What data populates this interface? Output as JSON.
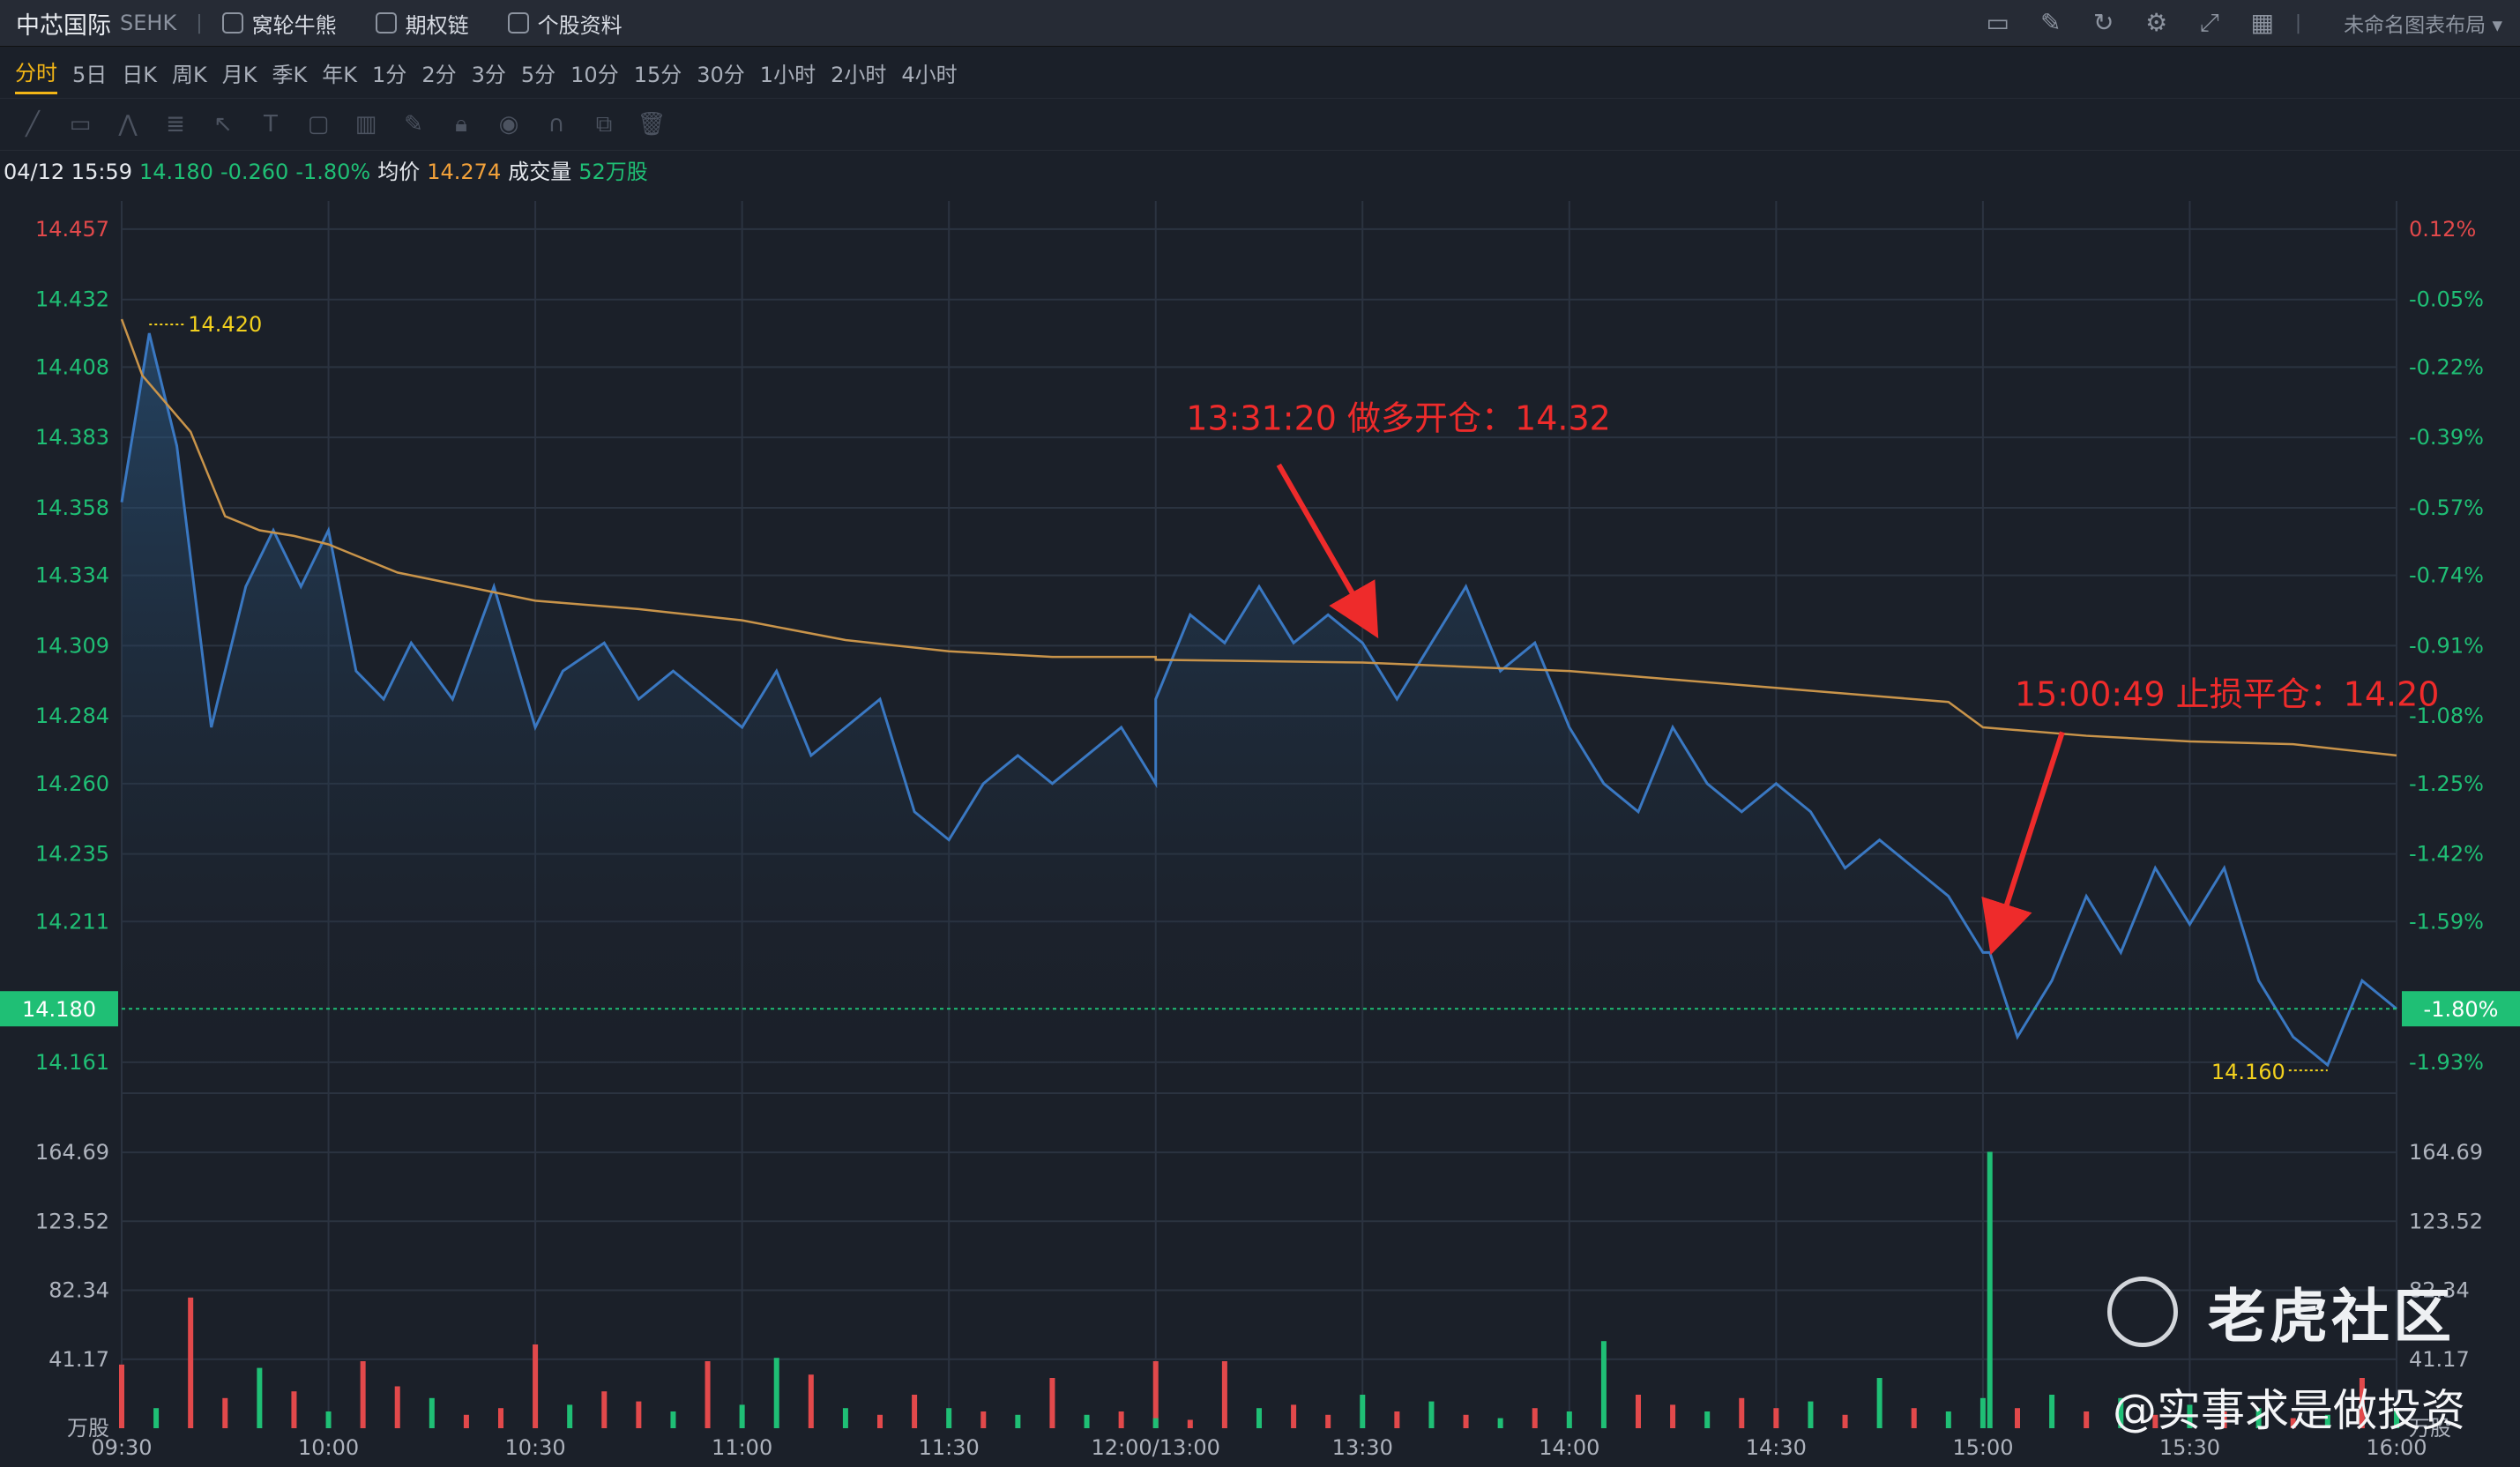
{
  "header": {
    "stock_name": "中芯国际",
    "exchange": "SEHK",
    "menu": [
      {
        "label": "窝轮牛熊",
        "icon": "warrant-icon"
      },
      {
        "label": "期权链",
        "icon": "option-chain-icon"
      },
      {
        "label": "个股资料",
        "icon": "document-icon"
      }
    ],
    "tools_right": [
      "monitor-icon",
      "edit-icon",
      "refresh-icon",
      "settings-icon",
      "fullscreen-icon",
      "grid-layout-icon"
    ],
    "layout_label": "未命名图表布局"
  },
  "periods": [
    "分时",
    "5日",
    "日K",
    "周K",
    "月K",
    "季K",
    "年K",
    "1分",
    "2分",
    "3分",
    "5分",
    "10分",
    "15分",
    "30分",
    "1小时",
    "2小时",
    "4小时"
  ],
  "active_period": "分时",
  "drawing_tools": [
    "line-tool-icon",
    "rect-tool-icon",
    "pattern-tool-icon",
    "fib-tool-icon",
    "arrow-tool-icon",
    "text-tool-icon",
    "label-tool-icon",
    "measure-tool-icon",
    "pen-icon",
    "lock-icon",
    "eye-icon",
    "magnet-icon",
    "copy-icon",
    "trash-icon"
  ],
  "info": {
    "datetime": "04/12 15:59",
    "price": "14.180",
    "change": "-0.260",
    "change_pct": "-1.80%",
    "avg_label": "均价",
    "avg_value": "14.274",
    "vol_label": "成交量",
    "vol_value": "52万股"
  },
  "colors": {
    "up": "#e2494b",
    "down": "#1fbf75",
    "price_line": "#3a78c2",
    "avg_line": "#c9944a",
    "highlight": "#f2d01e",
    "annotation": "#ee2b2b"
  },
  "y_price_labels": [
    {
      "v": 14.457,
      "t": "14.457"
    },
    {
      "v": 14.432,
      "t": "14.432"
    },
    {
      "v": 14.408,
      "t": "14.408"
    },
    {
      "v": 14.383,
      "t": "14.383"
    },
    {
      "v": 14.358,
      "t": "14.358"
    },
    {
      "v": 14.334,
      "t": "14.334"
    },
    {
      "v": 14.309,
      "t": "14.309"
    },
    {
      "v": 14.284,
      "t": "14.284"
    },
    {
      "v": 14.26,
      "t": "14.260"
    },
    {
      "v": 14.235,
      "t": "14.235"
    },
    {
      "v": 14.211,
      "t": "14.211"
    },
    {
      "v": 14.161,
      "t": "14.161"
    }
  ],
  "y_pct_labels": [
    {
      "v": 14.457,
      "t": "0.12%"
    },
    {
      "v": 14.432,
      "t": "-0.05%"
    },
    {
      "v": 14.408,
      "t": "-0.22%"
    },
    {
      "v": 14.383,
      "t": "-0.39%"
    },
    {
      "v": 14.358,
      "t": "-0.57%"
    },
    {
      "v": 14.334,
      "t": "-0.74%"
    },
    {
      "v": 14.309,
      "t": "-0.91%"
    },
    {
      "v": 14.284,
      "t": "-1.08%"
    },
    {
      "v": 14.26,
      "t": "-1.25%"
    },
    {
      "v": 14.235,
      "t": "-1.42%"
    },
    {
      "v": 14.211,
      "t": "-1.59%"
    },
    {
      "v": 14.161,
      "t": "-1.93%"
    }
  ],
  "last_price_tag": "14.180",
  "last_pct_tag": "-1.80%",
  "high_label": "14.420",
  "low_label": "14.160",
  "volume_labels": [
    "164.69",
    "123.52",
    "82.34",
    "41.17"
  ],
  "volume_unit": "万股",
  "x_labels": [
    "09:30",
    "10:00",
    "10:30",
    "11:00",
    "11:30",
    "12:00/13:00",
    "13:30",
    "14:00",
    "14:30",
    "15:00",
    "15:30",
    "16:00"
  ],
  "annotations": {
    "buy": "13:31:20 做多开仓：14.32",
    "stop": "15:00:49 止损平仓：14.20"
  },
  "watermark": {
    "community": "老虎社区",
    "user": "@实事求是做投资"
  },
  "chart_data": {
    "type": "line",
    "title": "",
    "prev_close": 14.44,
    "ylim": [
      14.15,
      14.467
    ],
    "volume_ylim": [
      0,
      200
    ],
    "sessions": [
      [
        "09:30",
        "12:00"
      ],
      [
        "13:00",
        "16:00"
      ]
    ],
    "series": [
      {
        "name": "price",
        "x": [
          "09:30",
          "09:34",
          "09:38",
          "09:43",
          "09:48",
          "09:52",
          "09:56",
          "10:00",
          "10:04",
          "10:08",
          "10:12",
          "10:18",
          "10:24",
          "10:30",
          "10:34",
          "10:40",
          "10:45",
          "10:50",
          "10:55",
          "11:00",
          "11:05",
          "11:10",
          "11:15",
          "11:20",
          "11:25",
          "11:30",
          "11:35",
          "11:40",
          "11:45",
          "11:50",
          "11:55",
          "12:00",
          "13:00",
          "13:05",
          "13:10",
          "13:15",
          "13:20",
          "13:25",
          "13:30",
          "13:35",
          "13:40",
          "13:45",
          "13:50",
          "13:55",
          "14:00",
          "14:05",
          "14:10",
          "14:15",
          "14:20",
          "14:25",
          "14:30",
          "14:35",
          "14:40",
          "14:45",
          "14:50",
          "14:55",
          "15:00",
          "15:01",
          "15:05",
          "15:10",
          "15:15",
          "15:20",
          "15:25",
          "15:30",
          "15:35",
          "15:40",
          "15:45",
          "15:50",
          "15:55",
          "16:00"
        ],
        "values": [
          14.36,
          14.42,
          14.38,
          14.28,
          14.33,
          14.35,
          14.33,
          14.35,
          14.3,
          14.29,
          14.31,
          14.29,
          14.33,
          14.28,
          14.3,
          14.31,
          14.29,
          14.3,
          14.29,
          14.28,
          14.3,
          14.27,
          14.28,
          14.29,
          14.25,
          14.24,
          14.26,
          14.27,
          14.26,
          14.27,
          14.28,
          14.26,
          14.29,
          14.32,
          14.31,
          14.33,
          14.31,
          14.32,
          14.31,
          14.29,
          14.31,
          14.33,
          14.3,
          14.31,
          14.28,
          14.26,
          14.25,
          14.28,
          14.26,
          14.25,
          14.26,
          14.25,
          14.23,
          14.24,
          14.23,
          14.22,
          14.2,
          14.2,
          14.17,
          14.19,
          14.22,
          14.2,
          14.23,
          14.21,
          14.23,
          14.19,
          14.17,
          14.16,
          14.19,
          14.18
        ]
      },
      {
        "name": "均价",
        "x": [
          "09:30",
          "09:33",
          "09:40",
          "09:45",
          "09:50",
          "09:55",
          "10:00",
          "10:10",
          "10:20",
          "10:30",
          "10:45",
          "11:00",
          "11:15",
          "11:30",
          "11:45",
          "12:00",
          "13:00",
          "13:30",
          "14:00",
          "14:15",
          "14:30",
          "14:45",
          "14:55",
          "15:00",
          "15:15",
          "15:30",
          "15:45",
          "16:00"
        ],
        "values": [
          14.425,
          14.405,
          14.385,
          14.355,
          14.35,
          14.348,
          14.345,
          14.335,
          14.33,
          14.325,
          14.322,
          14.318,
          14.311,
          14.307,
          14.305,
          14.305,
          14.304,
          14.303,
          14.3,
          14.297,
          14.294,
          14.291,
          14.289,
          14.28,
          14.277,
          14.275,
          14.274,
          14.27
        ]
      }
    ],
    "volume_minutes": [
      "09:30",
      "09:35",
      "09:40",
      "09:45",
      "09:50",
      "09:55",
      "10:00",
      "10:05",
      "10:10",
      "10:15",
      "10:20",
      "10:25",
      "10:30",
      "10:35",
      "10:40",
      "10:45",
      "10:50",
      "10:55",
      "11:00",
      "11:05",
      "11:10",
      "11:15",
      "11:20",
      "11:25",
      "11:30",
      "11:35",
      "11:40",
      "11:45",
      "11:50",
      "11:55",
      "12:00",
      "13:00",
      "13:05",
      "13:10",
      "13:15",
      "13:20",
      "13:25",
      "13:30",
      "13:35",
      "13:40",
      "13:45",
      "13:50",
      "13:55",
      "14:00",
      "14:05",
      "14:10",
      "14:15",
      "14:20",
      "14:25",
      "14:30",
      "14:35",
      "14:40",
      "14:45",
      "14:50",
      "14:55",
      "15:00",
      "15:01",
      "15:05",
      "15:10",
      "15:15",
      "15:20",
      "15:25",
      "15:30",
      "15:35",
      "15:40",
      "15:45",
      "15:50",
      "15:55",
      "16:00"
    ],
    "volume_values": [
      38,
      12,
      78,
      18,
      36,
      22,
      10,
      40,
      25,
      18,
      8,
      12,
      50,
      14,
      22,
      16,
      10,
      40,
      14,
      42,
      32,
      12,
      8,
      20,
      12,
      10,
      8,
      30,
      8,
      10,
      40,
      6,
      5,
      40,
      12,
      14,
      8,
      20,
      10,
      16,
      8,
      6,
      12,
      10,
      52,
      20,
      14,
      10,
      18,
      12,
      16,
      8,
      30,
      12,
      10,
      18,
      165,
      12,
      20,
      10,
      18,
      8,
      14,
      10,
      12,
      6,
      8,
      30,
      12
    ],
    "volume_up": [
      true,
      false,
      true,
      true,
      false,
      true,
      false,
      true,
      true,
      false,
      true,
      true,
      true,
      false,
      true,
      true,
      false,
      true,
      false,
      false,
      true,
      false,
      true,
      true,
      false,
      true,
      false,
      true,
      false,
      true,
      true,
      false,
      true,
      true,
      false,
      true,
      true,
      false,
      true,
      false,
      true,
      false,
      true,
      false,
      false,
      true,
      true,
      false,
      true,
      true,
      false,
      true,
      false,
      true,
      false,
      false,
      false,
      true,
      false,
      true,
      false,
      true,
      false,
      true,
      false,
      true,
      false,
      true,
      false
    ]
  }
}
